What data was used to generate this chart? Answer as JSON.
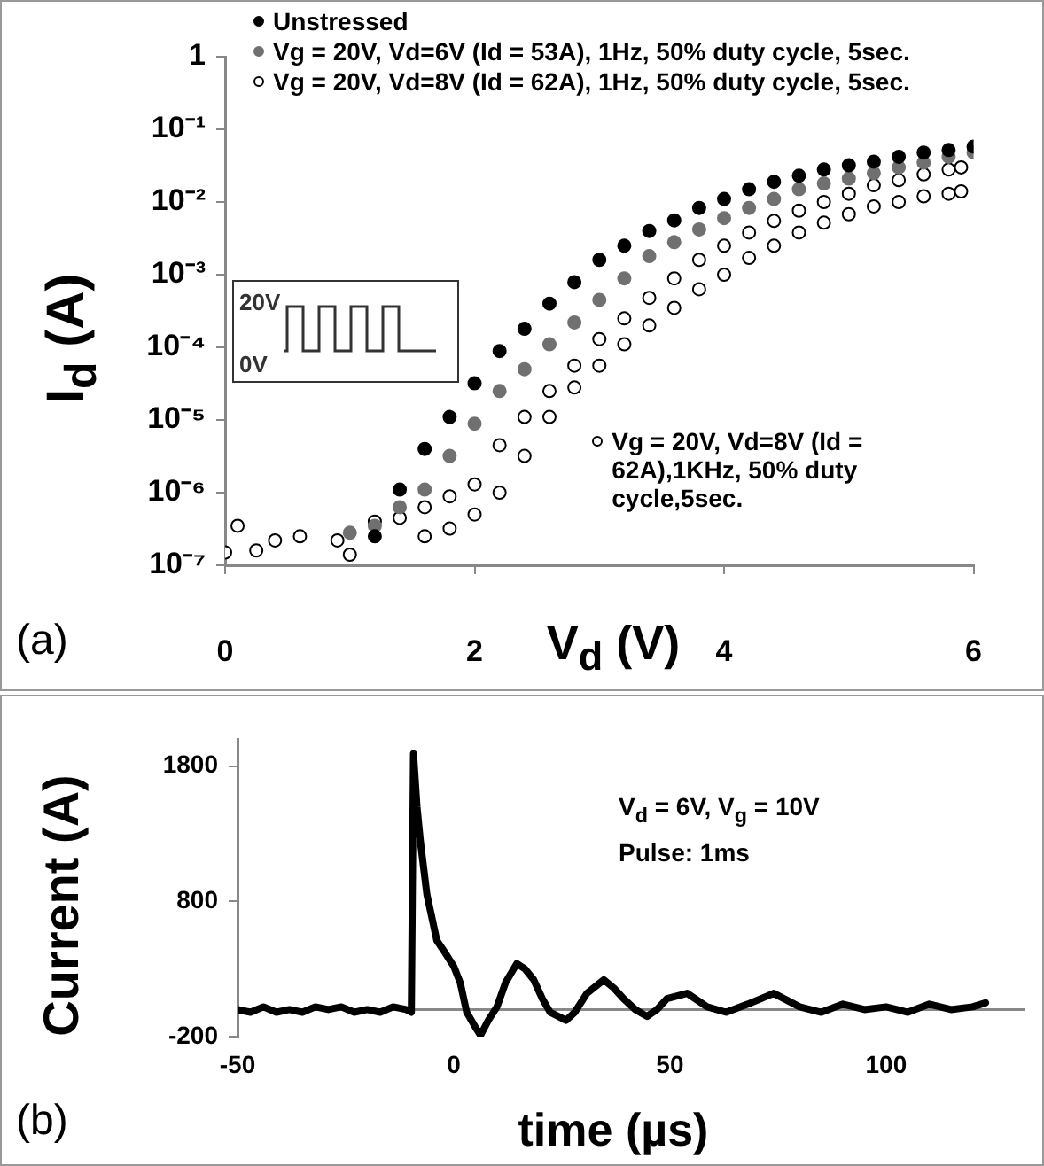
{
  "chart_data": [
    {
      "type": "scatter",
      "xlabel": "V$_{d}$ (V)",
      "ylabel": "I$_{d}$ (A)",
      "log": "y",
      "marker": "circle",
      "legend": "top left",
      "xlim": [
        0,
        6
      ],
      "xticks": [
        0,
        2,
        4,
        6
      ],
      "ylim": [
        1e-07,
        1
      ],
      "yticks": [
        {
          "value": 1e-07,
          "label": "10⁻⁷"
        },
        {
          "value": 1e-06,
          "label": "10⁻⁶"
        },
        {
          "value": 1e-05,
          "label": "10⁻⁵"
        },
        {
          "value": 0.0001,
          "label": "10⁻⁴"
        },
        {
          "value": 0.001,
          "label": "10⁻³"
        },
        {
          "value": 0.01,
          "label": "10⁻²"
        },
        {
          "value": 0.1,
          "label": "10⁻¹"
        },
        1
      ],
      "annotations": [
        "(a)",
        "20V",
        "0V",
        {
          "text": "Vg = 20V, Vd=8V (Id = 62A),1KHz, 50% duty cycle,5sec.",
          "x": 3.0,
          "y": 5e-06
        }
      ],
      "series": [
        {
          "name": "Unstressed",
          "color": "#000000",
          "x": [
            1.2,
            1.4,
            1.6,
            1.8,
            2.0,
            2.2,
            2.4,
            2.6,
            2.8,
            3.0,
            3.2,
            3.4,
            3.6,
            3.8,
            4.0,
            4.2,
            4.4,
            4.6,
            4.8,
            5.0,
            5.2,
            5.4,
            5.6,
            5.8,
            6.0
          ],
          "values": [
            2.5e-07,
            1.1e-06,
            4e-06,
            1.1e-05,
            3.2e-05,
            8.9e-05,
            0.00018,
            0.0004,
            0.00079,
            0.0016,
            0.0025,
            0.004,
            0.0056,
            0.0083,
            0.011,
            0.015,
            0.019,
            0.023,
            0.028,
            0.032,
            0.036,
            0.042,
            0.048,
            0.052,
            0.058
          ]
        },
        {
          "name": "Vg = 20V, Vd=6V (Id = 53A), 1Hz, 50% duty cycle, 5sec.",
          "color": "#707070",
          "x": [
            1.0,
            1.2,
            1.4,
            1.6,
            1.8,
            2.0,
            2.2,
            2.4,
            2.6,
            2.8,
            3.0,
            3.2,
            3.4,
            3.6,
            3.8,
            4.0,
            4.2,
            4.4,
            4.6,
            4.8,
            5.0,
            5.2,
            5.4,
            5.6,
            5.8,
            6.0
          ],
          "values": [
            2.8e-07,
            3.5e-07,
            6.3e-07,
            1.1e-06,
            3.2e-06,
            8.9e-06,
            2.5e-05,
            5e-05,
            0.00011,
            0.00022,
            0.00045,
            0.00089,
            0.0018,
            0.0028,
            0.0042,
            0.006,
            0.0083,
            0.011,
            0.015,
            0.018,
            0.021,
            0.025,
            0.03,
            0.035,
            0.042,
            0.048
          ]
        },
        {
          "name": "Vg = 20V, Vd=8V (Id = 62A), 1Hz, 50% duty cycle, 5sec.",
          "color": "#000000",
          "x": [
            0.9,
            1.0,
            1.2,
            1.4,
            1.6,
            1.8,
            2.0,
            2.2,
            2.4,
            2.6,
            2.8,
            3.0,
            3.2,
            3.4,
            3.6,
            3.8,
            4.0,
            4.2,
            4.4,
            4.6,
            4.8,
            5.0,
            5.2,
            5.4,
            5.6,
            5.8,
            5.9
          ],
          "values": [
            2.2e-07,
            1.4e-07,
            4e-07,
            4.5e-07,
            6.3e-07,
            8.9e-07,
            1.3e-06,
            4.5e-06,
            1.1e-05,
            2.5e-05,
            5.6e-05,
            0.00013,
            0.00025,
            0.00048,
            0.00089,
            0.0016,
            0.0025,
            0.0038,
            0.0055,
            0.0076,
            0.01,
            0.013,
            0.017,
            0.02,
            0.024,
            0.028,
            0.03
          ]
        },
        {
          "color": "#000000",
          "x": [
            0.0,
            0.1,
            0.25,
            0.4,
            0.6,
            1.6,
            1.8,
            2.0,
            2.2,
            2.4,
            2.6,
            2.8,
            3.0,
            3.2,
            3.4,
            3.6,
            3.8,
            4.0,
            4.2,
            4.4,
            4.6,
            4.8,
            5.0,
            5.2,
            5.4,
            5.6,
            5.8,
            5.9
          ],
          "values": [
            1.5e-07,
            3.5e-07,
            1.6e-07,
            2.2e-07,
            2.5e-07,
            2.5e-07,
            3.2e-07,
            5e-07,
            1e-06,
            3.2e-06,
            1.1e-05,
            2.8e-05,
            5.6e-05,
            0.00011,
            0.0002,
            0.00035,
            0.00063,
            0.001,
            0.0017,
            0.0025,
            0.0038,
            0.0052,
            0.0068,
            0.0087,
            0.01,
            0.012,
            0.013,
            0.014
          ]
        }
      ]
    },
    {
      "type": "line",
      "xlabel": "time (µs)",
      "ylabel": "Current (A)",
      "marker": "none",
      "color": "#000000",
      "xlim": [
        -50,
        132
      ],
      "xticks": [
        -50,
        0,
        50,
        100
      ],
      "ylim": [
        -200,
        2000
      ],
      "yticks": [
        -200,
        800,
        1800
      ],
      "annotations": [
        "V$_{d}$ = 6V, V$_{g}$ = 10V",
        "Pulse: 1ms",
        "(b)"
      ],
      "x": [
        -50,
        -47,
        -44,
        -41,
        -38,
        -35,
        -32,
        -29,
        -26,
        -23,
        -20,
        -17,
        -14,
        -11,
        -9.8,
        -9.3,
        -8.5,
        -7.7,
        -6.2,
        -3.9,
        -2,
        0,
        1.5,
        3,
        5,
        6.2,
        8,
        10,
        12,
        14.6,
        16.5,
        18.5,
        20.5,
        22.3,
        26,
        28,
        30.8,
        34.7,
        37,
        39.3,
        42,
        44.7,
        47,
        49.3,
        54,
        58.6,
        63,
        68,
        74,
        80,
        85,
        90,
        95,
        100,
        105,
        110,
        115,
        120,
        123
      ],
      "values": [
        0,
        -20,
        20,
        -20,
        0,
        -20,
        20,
        0,
        20,
        -20,
        0,
        -20,
        20,
        0,
        -20,
        1890,
        1500,
        1240,
        850,
        510,
        420,
        320,
        200,
        -20,
        -130,
        -190,
        -80,
        20,
        200,
        340,
        300,
        220,
        80,
        -20,
        -80,
        -20,
        120,
        220,
        160,
        80,
        0,
        -50,
        0,
        80,
        120,
        20,
        -20,
        40,
        120,
        20,
        -20,
        40,
        0,
        20,
        -20,
        40,
        0,
        20,
        50
      ]
    }
  ]
}
